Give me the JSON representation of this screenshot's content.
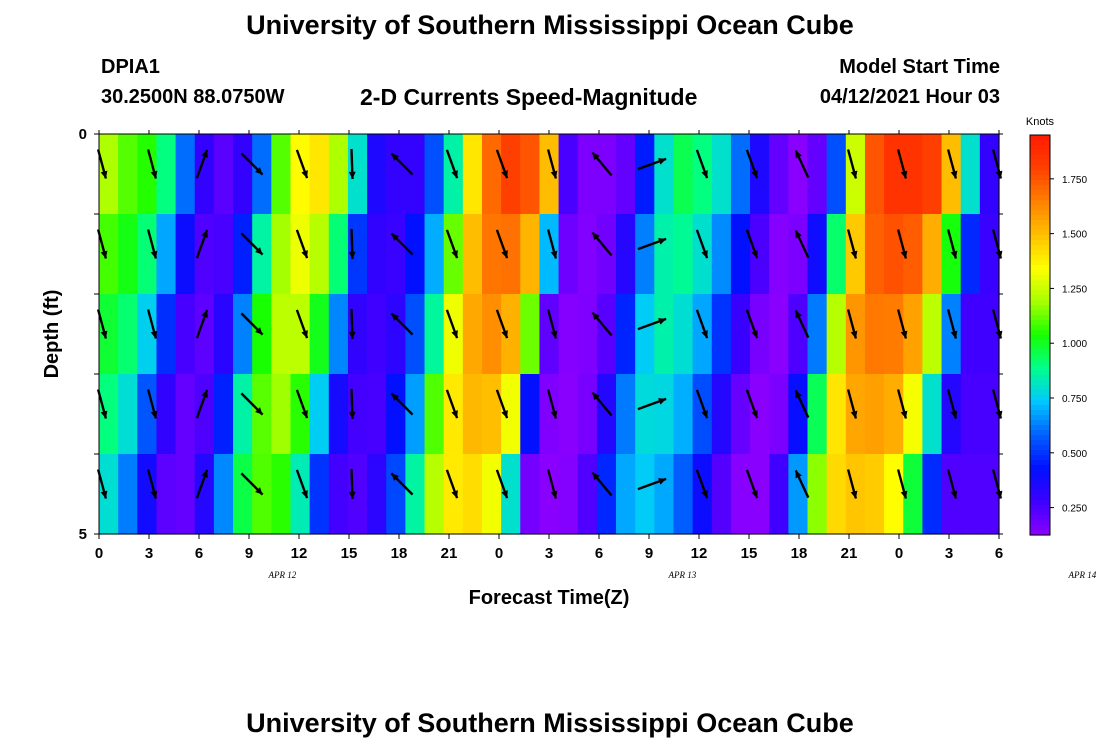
{
  "header": {
    "title": "University of Southern Mississippi Ocean Cube",
    "station": "DPIA1",
    "coordinates": "30.2500N  88.0750W",
    "subtitle": "2-D Currents Speed-Magnitude",
    "model_start_label": "Model Start Time",
    "model_start_value": "04/12/2021 Hour 03"
  },
  "footer": {
    "title": "University of Southern Mississippi Ocean Cube"
  },
  "chart_data": {
    "type": "heatmap",
    "title": "2-D Currents Speed-Magnitude",
    "xlabel": "Forecast Time(Z)",
    "ylabel": "Depth (ft)",
    "x_ticks": [
      "0",
      "3",
      "6",
      "9",
      "12",
      "15",
      "18",
      "21",
      "0",
      "3",
      "6",
      "9",
      "12",
      "15",
      "18",
      "21",
      "0",
      "3",
      "6"
    ],
    "x_range": [
      0,
      54
    ],
    "date_labels": [
      {
        "label": "APR 12",
        "at": 11
      },
      {
        "label": "APR 13",
        "at": 35
      },
      {
        "label": "APR 14",
        "at": 59
      }
    ],
    "y_ticks": [
      "0",
      "5"
    ],
    "ylim": [
      0,
      5
    ],
    "depth_layers": 5,
    "colorbar": {
      "label": "Knots",
      "min": 0.125,
      "max": 1.95,
      "ticks": [
        "0.250",
        "0.500",
        "0.750",
        "1.000",
        "1.250",
        "1.500",
        "1.750"
      ],
      "tick_values": [
        0.25,
        0.5,
        0.75,
        1.0,
        1.25,
        1.5,
        1.75
      ]
    },
    "colors": {
      "scale": [
        "#8a00ff",
        "#3c00ff",
        "#0010ff",
        "#0060ff",
        "#00c8ff",
        "#00ff8c",
        "#18ff00",
        "#a8ff00",
        "#ffff00",
        "#ffc000",
        "#ff8000",
        "#ff4000",
        "#ff1a00"
      ]
    },
    "speed_series_surface": [
      1.2,
      1.1,
      1.05,
      0.9,
      0.6,
      0.3,
      0.22,
      0.3,
      0.6,
      1.1,
      1.35,
      1.4,
      1.2,
      0.8,
      0.35,
      0.3,
      0.3,
      0.55,
      0.85,
      1.4,
      1.7,
      1.8,
      1.75,
      1.5,
      0.25,
      0.15,
      0.15,
      0.2,
      0.45,
      0.8,
      0.95,
      0.9,
      0.8,
      0.6,
      0.35,
      0.2,
      0.1,
      0.2,
      0.55,
      1.25,
      1.75,
      1.85,
      1.85,
      1.8,
      1.5,
      0.8,
      0.3
    ],
    "arrows": {
      "columns": [
        0,
        3,
        6,
        9,
        12,
        15,
        18,
        21,
        24,
        27,
        30,
        33,
        36,
        39,
        42,
        45,
        48,
        51,
        54
      ],
      "depths": [
        0.5,
        1.5,
        2.5,
        3.5,
        4.5
      ],
      "direction_deg": [
        165,
        165,
        20,
        135,
        160,
        178,
        315,
        160,
        160,
        165,
        320,
        70,
        160,
        160,
        335,
        165,
        165,
        165,
        165
      ],
      "note_rows": "direction by column, all depth rows"
    }
  }
}
